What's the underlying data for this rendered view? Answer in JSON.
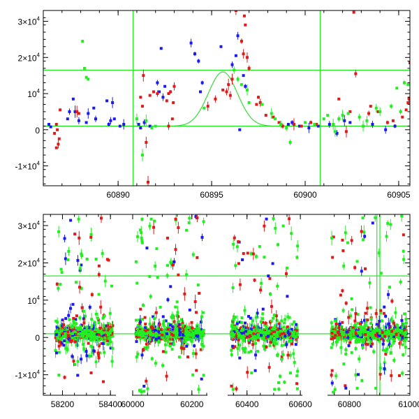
{
  "chart_data": [
    {
      "type": "scatter",
      "title": "",
      "xlabel": "",
      "ylabel": "",
      "xlim": [
        60886,
        60905.6
      ],
      "ylim": [
        -15500,
        33000
      ],
      "xticks": [
        60890,
        60895,
        60900,
        60905
      ],
      "xtick_labels": [
        "60890",
        "60895",
        "60900",
        "60905"
      ],
      "yticks": [
        -10000,
        0,
        10000,
        20000,
        30000
      ],
      "ytick_labels": [
        {
          "base": "-1×10",
          "exp": "4"
        },
        {
          "base": "0",
          "exp": ""
        },
        {
          "base": "10",
          "exp": "4"
        },
        {
          "base": "2×10",
          "exp": "4"
        },
        {
          "base": "3×10",
          "exp": "4"
        }
      ],
      "reference_lines": {
        "horizontal": [
          16500,
          1000
        ],
        "vertical": [
          60890.8,
          60900.8
        ]
      },
      "model_curve": {
        "name": "model",
        "color": "#22dd22",
        "baseline": 1000,
        "peak": 16000,
        "peak_x": 60895.6,
        "width": 1.1
      },
      "series": [
        {
          "name": "blue",
          "color": "#1a1aee",
          "points": [
            [
              60886.3,
              1500
            ],
            [
              60886.4,
              800
            ],
            [
              60887.3,
              3000
            ],
            [
              60887.4,
              5000
            ],
            [
              60887.6,
              8500
            ],
            [
              60887.7,
              5000
            ],
            [
              60887.9,
              2500
            ],
            [
              60888.3,
              2000
            ],
            [
              60888.4,
              4500
            ],
            [
              60888.7,
              6000
            ],
            [
              60888.8,
              3000
            ],
            [
              60889.4,
              8000
            ],
            [
              60889.7,
              7500
            ],
            [
              60889.8,
              3000
            ],
            [
              60889.5,
              1500
            ],
            [
              60889.6,
              2500
            ],
            [
              60890.1,
              1000
            ],
            [
              60890.3,
              1500
            ],
            [
              60891.1,
              1500
            ],
            [
              60891.2,
              500
            ],
            [
              60891.4,
              2000
            ],
            [
              60891.7,
              1000
            ],
            [
              60892.1,
              13000
            ],
            [
              60892.2,
              10500
            ],
            [
              60892.3,
              22500
            ],
            [
              60892.4,
              9000
            ],
            [
              60892.5,
              12000
            ],
            [
              60893.9,
              24000
            ],
            [
              60894.1,
              21000
            ],
            [
              60894.3,
              19000
            ],
            [
              60894.4,
              10500
            ],
            [
              60894.5,
              13000
            ],
            [
              60895.5,
              23000
            ],
            [
              60896.1,
              18000
            ],
            [
              60896.3,
              20500
            ],
            [
              60896.4,
              26000
            ],
            [
              60896.5,
              0
            ],
            [
              60896.7,
              15000
            ],
            [
              60896.8,
              12000
            ],
            [
              60899.1,
              1500
            ],
            [
              60899.3,
              2000
            ],
            [
              60899.7,
              1000
            ],
            [
              60900.2,
              500
            ],
            [
              60900.7,
              1000
            ],
            [
              60901.3,
              1500
            ],
            [
              60901.7,
              -1000
            ],
            [
              60902.1,
              2500
            ],
            [
              60902.4,
              2000
            ],
            [
              60903.6,
              1500
            ],
            [
              60904.3,
              0
            ],
            [
              60904.8,
              1000
            ]
          ]
        },
        {
          "name": "red",
          "color": "#e01a1a",
          "points": [
            [
              60886.6,
              -1000
            ],
            [
              60886.7,
              -5000
            ],
            [
              60886.75,
              0
            ],
            [
              60886.8,
              -4000
            ],
            [
              60886.9,
              5500
            ],
            [
              60886.85,
              -2500
            ],
            [
              60886.7,
              1500
            ],
            [
              60887.9,
              4500
            ],
            [
              60887.8,
              5000
            ],
            [
              60891.2,
              9000
            ],
            [
              60891.3,
              6500
            ],
            [
              60891.35,
              15000
            ],
            [
              60891.5,
              -3500
            ],
            [
              60891.6,
              -14500
            ],
            [
              60891.7,
              9500
            ],
            [
              60891.9,
              10500
            ],
            [
              60892.1,
              10000
            ],
            [
              60892.6,
              8000
            ],
            [
              60892.7,
              10000
            ],
            [
              60892.8,
              10500
            ],
            [
              60892.9,
              3000
            ],
            [
              60892.95,
              7500
            ],
            [
              60892.7,
              1000
            ],
            [
              60893.0,
              12000
            ],
            [
              60894.8,
              6500
            ],
            [
              60895.2,
              8500
            ],
            [
              60895.6,
              11000
            ],
            [
              60895.8,
              10500
            ],
            [
              60895.9,
              12500
            ],
            [
              60896.0,
              9500
            ],
            [
              60896.1,
              14000
            ],
            [
              60896.3,
              33000
            ],
            [
              60896.6,
              24500
            ],
            [
              60896.7,
              21000
            ],
            [
              60896.75,
              31500
            ],
            [
              60896.8,
              29000
            ],
            [
              60896.9,
              20000
            ],
            [
              60897.0,
              17000
            ],
            [
              60897.4,
              7000
            ],
            [
              60897.5,
              9000
            ],
            [
              60897.6,
              7500
            ],
            [
              60897.9,
              4000
            ],
            [
              60898.3,
              3500
            ],
            [
              60898.6,
              2000
            ],
            [
              60898.8,
              1000
            ],
            [
              60899.4,
              1500
            ],
            [
              60899.8,
              1000
            ],
            [
              60900.3,
              2000
            ],
            [
              60900.6,
              1500
            ],
            [
              60901.8,
              8500
            ],
            [
              60902.2,
              -500
            ],
            [
              60902.6,
              32500
            ],
            [
              60902.7,
              15500
            ],
            [
              60902.4,
              5000
            ],
            [
              60903.4,
              4500
            ],
            [
              60903.5,
              6500
            ],
            [
              60903.9,
              5000
            ],
            [
              60904.4,
              2000
            ],
            [
              60904.7,
              2500
            ],
            [
              60905.2,
              3500
            ],
            [
              60905.4,
              5500
            ],
            [
              60905.5,
              7500
            ],
            [
              60905.55,
              8500
            ],
            [
              60905.6,
              18500
            ]
          ]
        },
        {
          "name": "green",
          "color": "#22ee22",
          "points": [
            [
              60888.1,
              24500
            ],
            [
              60888.2,
              17000
            ],
            [
              60888.3,
              14500
            ],
            [
              60888.4,
              14000
            ],
            [
              60891.0,
              3000
            ],
            [
              60891.3,
              -7000
            ],
            [
              60891.5,
              2500
            ],
            [
              60891.8,
              500
            ],
            [
              60892.0,
              1000
            ],
            [
              60894.6,
              6000
            ],
            [
              60896.2,
              16500
            ],
            [
              60896.4,
              14000
            ],
            [
              60896.6,
              12500
            ],
            [
              60896.9,
              11000
            ],
            [
              60897.0,
              7500
            ],
            [
              60897.7,
              7000
            ],
            [
              60898.2,
              4500
            ],
            [
              60898.4,
              3000
            ],
            [
              60898.7,
              1500
            ],
            [
              60899.0,
              500
            ],
            [
              60899.2,
              -3500
            ],
            [
              60900.0,
              2000
            ],
            [
              60900.5,
              1500
            ],
            [
              60901.0,
              3000
            ],
            [
              60901.2,
              4000
            ],
            [
              60901.5,
              1500
            ],
            [
              60901.6,
              -500
            ],
            [
              60901.8,
              3000
            ],
            [
              60902.0,
              4000
            ],
            [
              60902.3,
              4500
            ],
            [
              60902.9,
              3500
            ],
            [
              60903.1,
              1000
            ],
            [
              60903.3,
              2500
            ],
            [
              60903.8,
              6000
            ],
            [
              60904.0,
              5000
            ],
            [
              60904.6,
              6500
            ],
            [
              60904.9,
              11500
            ],
            [
              60905.1,
              5000
            ],
            [
              60905.3,
              13000
            ],
            [
              60905.5,
              12500
            ]
          ]
        }
      ]
    },
    {
      "type": "scatter",
      "title": "",
      "xlabel": "",
      "ylabel": "",
      "xlim": [
        58120,
        61000
      ],
      "ylim": [
        -15500,
        33000
      ],
      "broken_x_axis": true,
      "segments": [
        [
          58120,
          58420
        ],
        [
          60000,
          60250
        ],
        [
          60330,
          60605
        ],
        [
          60730,
          61000
        ]
      ],
      "xticks": [
        58200,
        58400,
        60000,
        60200,
        60400,
        60600,
        60800,
        61000
      ],
      "xtick_labels": [
        "58200",
        "58400",
        "60000",
        "60200",
        "60400",
        "60600",
        "60800",
        "61000"
      ],
      "yticks": [
        -10000,
        0,
        10000,
        20000,
        30000
      ],
      "ytick_labels": [
        {
          "base": "-1×10",
          "exp": "4"
        },
        {
          "base": "0",
          "exp": ""
        },
        {
          "base": "10",
          "exp": "4"
        },
        {
          "base": "2×10",
          "exp": "4"
        },
        {
          "base": "3×10",
          "exp": "4"
        }
      ],
      "reference_lines": {
        "horizontal": [
          16500,
          1000
        ],
        "vertical": [
          60890.8,
          60900.8
        ]
      },
      "observing_seasons": [
        {
          "x_start": 58170,
          "x_end": 58410,
          "y_low": -12000,
          "y_high": 32000
        },
        {
          "x_start": 60010,
          "x_end": 60240,
          "y_low": -15000,
          "y_high": 33000
        },
        {
          "x_start": 60340,
          "x_end": 60590,
          "y_low": -14000,
          "y_high": 33000
        },
        {
          "x_start": 60740,
          "x_end": 60990,
          "y_low": -15000,
          "y_high": 33000
        }
      ],
      "series": [
        {
          "name": "blue",
          "color": "#1a1aee",
          "share": 0.15
        },
        {
          "name": "red",
          "color": "#e01a1a",
          "share": 0.25
        },
        {
          "name": "green",
          "color": "#22ee22",
          "share": 0.6
        }
      ]
    }
  ]
}
